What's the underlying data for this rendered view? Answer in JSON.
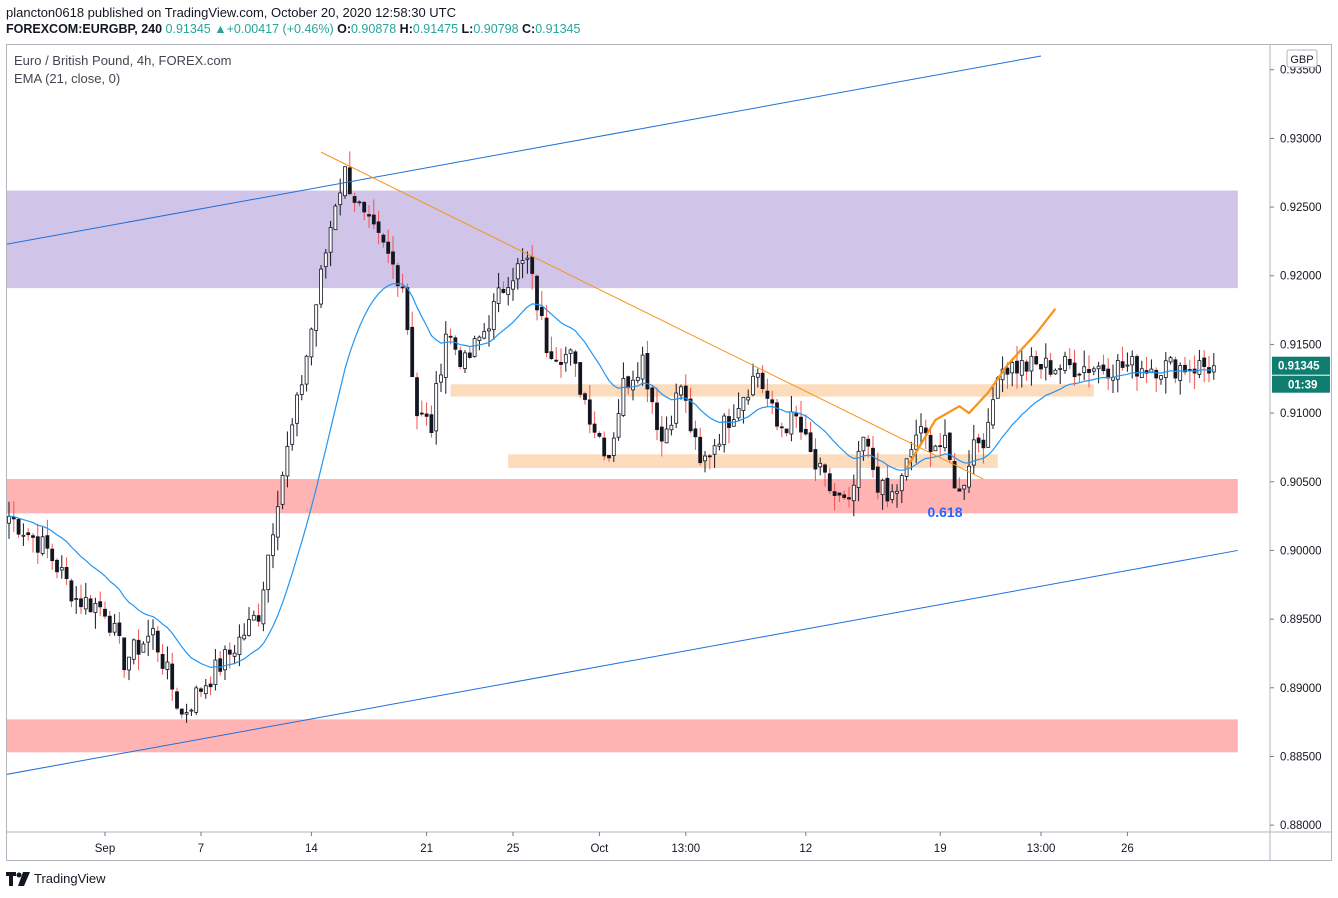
{
  "header": {
    "publisher": "plancton0618 published on TradingView.com, October 20, 2020 12:58:30 UTC",
    "symbol": "FOREXCOM:EURGBP, 240",
    "price": "0.91345",
    "change_arrow": "▲",
    "change": "+0.00417 (+0.46%)",
    "o_label": "O:",
    "o": "0.90878",
    "h_label": "H:",
    "h": "0.91475",
    "l_label": "L:",
    "l": "0.90798",
    "c_label": "C:",
    "c": "0.91345"
  },
  "legend": {
    "title": "Euro / British Pound, 4h, FOREX.com",
    "indicator": "EMA (21, close, 0)"
  },
  "footer": {
    "brand": "TradingView"
  },
  "colors": {
    "up": "#26a69a",
    "down": "#ef5350",
    "candle": "#131722",
    "ema": "#2196f3",
    "trend": "#f7931a",
    "channel": "#1e6fd9",
    "purple_zone": "#d1c4e9",
    "red_zone": "#ffb3b3",
    "orange_zone": "#fcdcbd",
    "price_tag": "#0f7d6f"
  },
  "chart_data": {
    "type": "candlestick",
    "symbol": "FOREXCOM:EURGBP",
    "interval": "240",
    "currency": "GBP",
    "ylim": [
      0.8795,
      0.9368
    ],
    "y_ticks": [
      "0.93500",
      "0.93000",
      "0.92500",
      "0.92000",
      "0.91500",
      "0.91000",
      "0.90500",
      "0.90000",
      "0.89500",
      "0.89000",
      "0.88500",
      "0.88000"
    ],
    "y_tick_values": [
      0.935,
      0.93,
      0.925,
      0.92,
      0.915,
      0.91,
      0.905,
      0.9,
      0.895,
      0.89,
      0.885,
      0.88
    ],
    "x_ticks": [
      "Sep",
      "7",
      "14",
      "21",
      "25",
      "Oct",
      "13:00",
      "12",
      "19",
      "13:00",
      "26"
    ],
    "x_tick_index": [
      20,
      40,
      63,
      87,
      105,
      123,
      141,
      166,
      194,
      215,
      233
    ],
    "num_bars": 252,
    "last_price": "0.91345",
    "countdown": "01:39",
    "fib_label": "0.618",
    "zones": [
      {
        "name": "purple-resistance-zone",
        "from": 0.9191,
        "to": 0.9262,
        "color": "#d1c4e9",
        "start": -2,
        "end": 256
      },
      {
        "name": "orange-zone-upper",
        "from": 0.9112,
        "to": 0.9121,
        "color": "#fcdcbd",
        "start": 92,
        "end": 226
      },
      {
        "name": "orange-zone-lower",
        "from": 0.906,
        "to": 0.907,
        "color": "#fcdcbd",
        "start": 104,
        "end": 206
      },
      {
        "name": "red-support-zone-upper",
        "from": 0.9027,
        "to": 0.9052,
        "color": "#ffb3b3",
        "start": -2,
        "end": 256
      },
      {
        "name": "red-support-zone-lower",
        "from": 0.8853,
        "to": 0.8877,
        "color": "#ffb3b3",
        "start": -2,
        "end": 256
      }
    ],
    "lines": [
      {
        "name": "channel-upper",
        "p1": [
          -2,
          0.9222
        ],
        "p2": [
          215,
          0.936
        ],
        "color": "#1e6fd9"
      },
      {
        "name": "channel-lower",
        "p1": [
          -2,
          0.8836
        ],
        "p2": [
          256,
          0.9
        ],
        "color": "#1e6fd9"
      },
      {
        "name": "downtrend-line",
        "p1": [
          65,
          0.929
        ],
        "p2": [
          203,
          0.9052
        ],
        "color": "#f7931a"
      }
    ],
    "projection": [
      [
        187,
        0.906
      ],
      [
        193,
        0.9095
      ],
      [
        198,
        0.9105
      ],
      [
        200,
        0.91
      ],
      [
        204,
        0.9115
      ],
      [
        208,
        0.9135
      ],
      [
        214,
        0.9158
      ],
      [
        218,
        0.9176
      ]
    ],
    "swings": [
      [
        0,
        0.9025
      ],
      [
        8,
        0.9
      ],
      [
        14,
        0.8965
      ],
      [
        20,
        0.8958
      ],
      [
        24,
        0.892
      ],
      [
        30,
        0.894
      ],
      [
        36,
        0.888
      ],
      [
        40,
        0.89
      ],
      [
        46,
        0.8925
      ],
      [
        52,
        0.8955
      ],
      [
        56,
        0.904
      ],
      [
        60,
        0.9105
      ],
      [
        64,
        0.918
      ],
      [
        68,
        0.9255
      ],
      [
        70,
        0.9275
      ],
      [
        74,
        0.924
      ],
      [
        78,
        0.922
      ],
      [
        82,
        0.9195
      ],
      [
        85,
        0.91
      ],
      [
        88,
        0.909
      ],
      [
        91,
        0.916
      ],
      [
        95,
        0.9135
      ],
      [
        99,
        0.916
      ],
      [
        104,
        0.92
      ],
      [
        108,
        0.921
      ],
      [
        112,
        0.915
      ],
      [
        117,
        0.914
      ],
      [
        122,
        0.909
      ],
      [
        125,
        0.907
      ],
      [
        128,
        0.912
      ],
      [
        132,
        0.914
      ],
      [
        136,
        0.908
      ],
      [
        140,
        0.912
      ],
      [
        144,
        0.906
      ],
      [
        148,
        0.9085
      ],
      [
        153,
        0.9115
      ],
      [
        156,
        0.913
      ],
      [
        160,
        0.909
      ],
      [
        164,
        0.9095
      ],
      [
        168,
        0.906
      ],
      [
        172,
        0.904
      ],
      [
        175,
        0.903
      ],
      [
        178,
        0.908
      ],
      [
        181,
        0.905
      ],
      [
        183,
        0.9035
      ],
      [
        186,
        0.905
      ],
      [
        189,
        0.9085
      ],
      [
        192,
        0.908
      ],
      [
        195,
        0.9075
      ],
      [
        198,
        0.904
      ],
      [
        201,
        0.908
      ],
      [
        204,
        0.9085
      ],
      [
        206,
        0.9134
      ]
    ]
  }
}
